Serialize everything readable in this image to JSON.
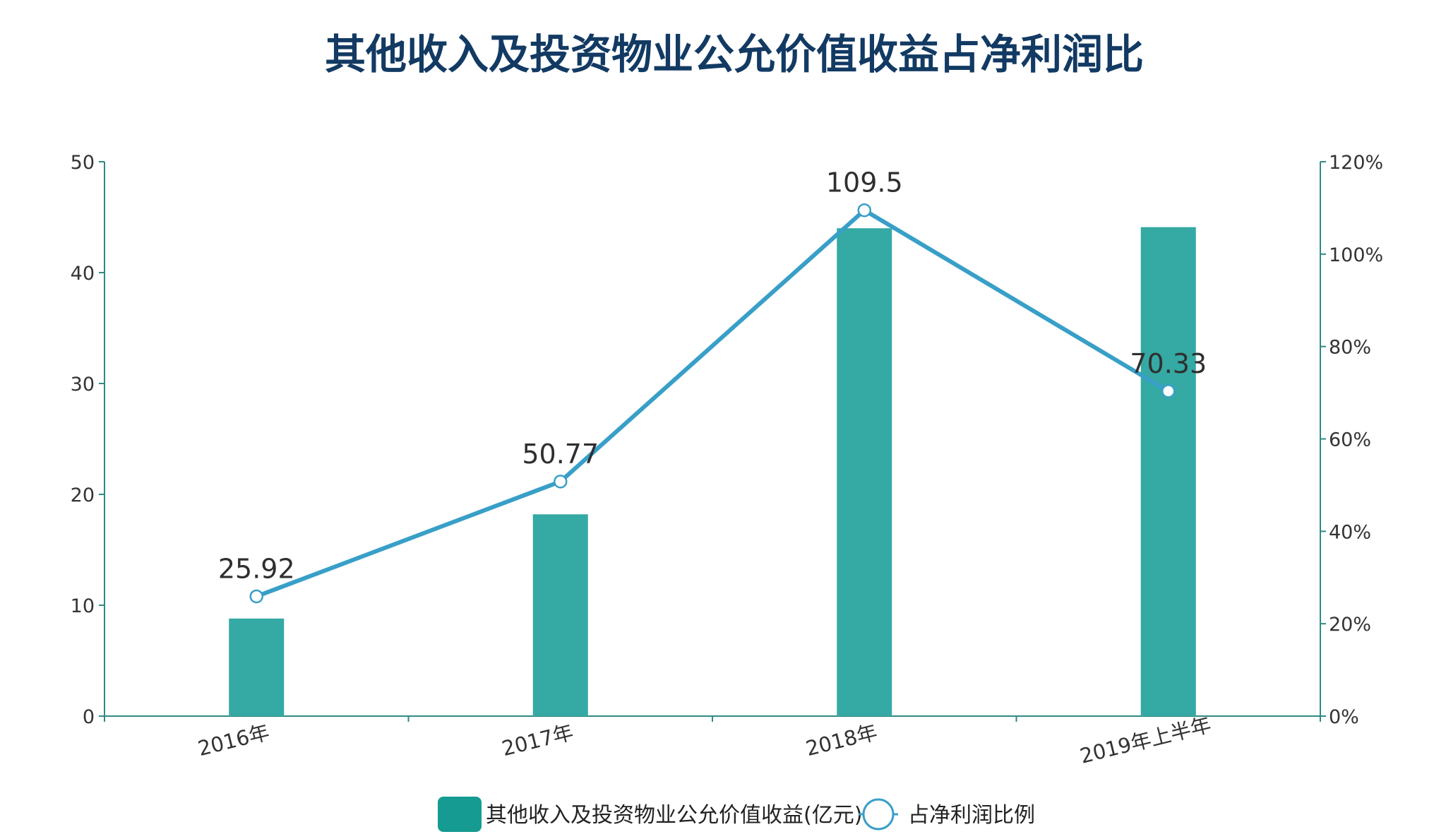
{
  "chart_data": {
    "type": "bar",
    "title": "其他收入及投资物业公允价值收益占净利润比",
    "categories": [
      "2016年",
      "2017年",
      "2018年",
      "2019年上半年"
    ],
    "series": [
      {
        "name": "其他收入及投资物业公允价值收益(亿元)",
        "type": "bar",
        "axis": "left",
        "values": [
          8.8,
          18.2,
          44.0,
          44.1
        ]
      },
      {
        "name": "占净利润比例",
        "type": "line",
        "axis": "right",
        "values": [
          25.92,
          50.77,
          109.5,
          70.33
        ],
        "labels": [
          "25.92",
          "50.77",
          "109.5",
          "70.33"
        ]
      }
    ],
    "y_left": {
      "min": 0,
      "max": 50,
      "ticks": [
        0,
        10,
        20,
        30,
        40,
        50
      ],
      "tick_labels": [
        "0",
        "10",
        "20",
        "30",
        "40",
        "50"
      ]
    },
    "y_right": {
      "min": 0,
      "max": 120,
      "ticks": [
        0,
        20,
        40,
        60,
        80,
        100,
        120
      ],
      "tick_labels": [
        "0%",
        "20%",
        "40%",
        "60%",
        "80%",
        "100%",
        "120%"
      ]
    },
    "grid": false,
    "legend": "bottom-center",
    "colors": {
      "title": "#123a63",
      "bar": "#35a9a3",
      "legend_bar": "#159b91",
      "line": "#389fc8",
      "axis": "#2f8a85",
      "marker_fill": "#ffffff"
    }
  }
}
